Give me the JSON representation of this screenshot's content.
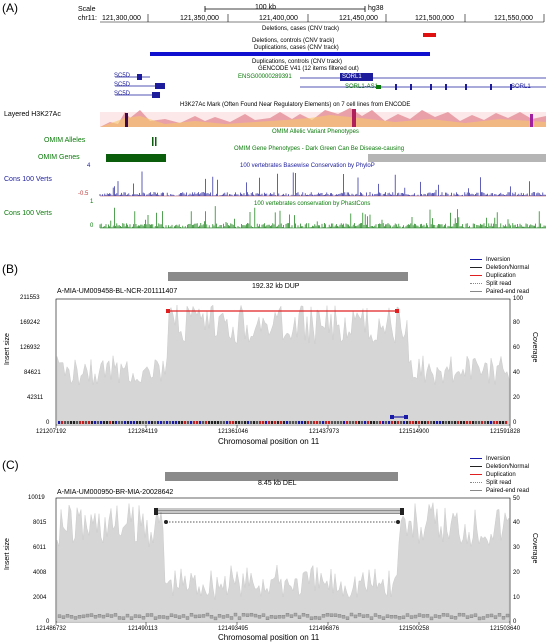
{
  "panelA": {
    "label": "(A)",
    "scale_label": "Scale",
    "scale_bar": "100 kb",
    "assembly": "hg38",
    "chrom": "chr11:",
    "positions": [
      "121,300,000",
      "121,350,000",
      "121,400,000",
      "121,450,000",
      "121,500,000",
      "121,550,000"
    ],
    "tracks": {
      "deletions_cases": "Deletions, cases (CNV track)",
      "deletions_controls": "Deletions, controls (CNV track)",
      "duplications_cases": "Duplications, cases (CNV track)",
      "duplications_controls": "Duplications, controls (CNV track)",
      "gencode": "GENCODE V41 (12 items filtered out)",
      "ensg": "ENSG00000289391",
      "sorl1": "SORL1",
      "sorl1_as1": "SORL1-AS1",
      "sc5d": [
        "SC5D",
        "SC5D",
        "SC5D"
      ],
      "sorl1_right": "SORL1",
      "h3k27ac_left": "Layered H3K27Ac",
      "h3k27ac_title": "H3K27Ac Mark (Often Found Near Regulatory Elements) on 7 cell lines from ENCODE",
      "omim_alleles_left": "OMIM Alleles",
      "omim_alleles_title": "OMIM Allelic Variant Phenotypes",
      "omim_genes_left": "OMIM Genes",
      "omim_genes_title": "OMIM Gene Phenotypes - Dark Green Can Be Disease-causing",
      "phylop_title": "100 vertebrates Basewise Conservation by PhyloP",
      "phylop_left": "Cons 100 Verts",
      "phylop_top": "4",
      "phylop_bottom": "-0.5",
      "phastcons_title": "100 vertebrates conservation by PhastCons",
      "phastcons_left": "Cons 100 Verts",
      "phastcons_top": "1",
      "phastcons_bottom": "0"
    }
  },
  "panelB": {
    "label": "(B)",
    "event": "192.32 kb DUP",
    "sample": "A-MIA-UM009458-BL-NCR-201111407",
    "ylabel": "Insert size",
    "y2label": "Coverage",
    "xlabel": "Chromosomal position on 11",
    "yticks": [
      "211553",
      "169242",
      "126932",
      "84621",
      "42311",
      "0"
    ],
    "y2ticks": [
      "100",
      "80",
      "60",
      "40",
      "20",
      "0"
    ],
    "xticks": [
      "121207192",
      "121284119",
      "121361046",
      "121437973",
      "121514900",
      "121591828"
    ],
    "legend": [
      "Inversion",
      "Deletion/Normal",
      "Duplication",
      "Split read",
      "Paired-end read"
    ]
  },
  "panelC": {
    "label": "(C)",
    "event": "8.45 kb DEL",
    "sample": "A-MIA-UM000950-BR-MIA-20028642",
    "ylabel": "Insert size",
    "y2label": "Coverage",
    "xlabel": "Chromosomal position on 11",
    "yticks": [
      "10019",
      "8015",
      "6011",
      "4008",
      "2004",
      "0"
    ],
    "y2ticks": [
      "50",
      "40",
      "30",
      "20",
      "10",
      "0"
    ],
    "xticks": [
      "121486732",
      "121490113",
      "121493495",
      "121496876",
      "121500258",
      "121503640"
    ],
    "legend": [
      "Inversion",
      "Deletion/Normal",
      "Duplication",
      "Split read",
      "Paired-end read"
    ]
  },
  "colors": {
    "inversion": "#1a1aa8",
    "deletion": "#222222",
    "duplication": "#e02020",
    "gene_blue": "#1c1c9c",
    "omim_green": "#0a5d0a",
    "cnv_red": "#e01010",
    "cnv_blue": "#1010d0",
    "coverage_gray": "#cfcfcf"
  }
}
